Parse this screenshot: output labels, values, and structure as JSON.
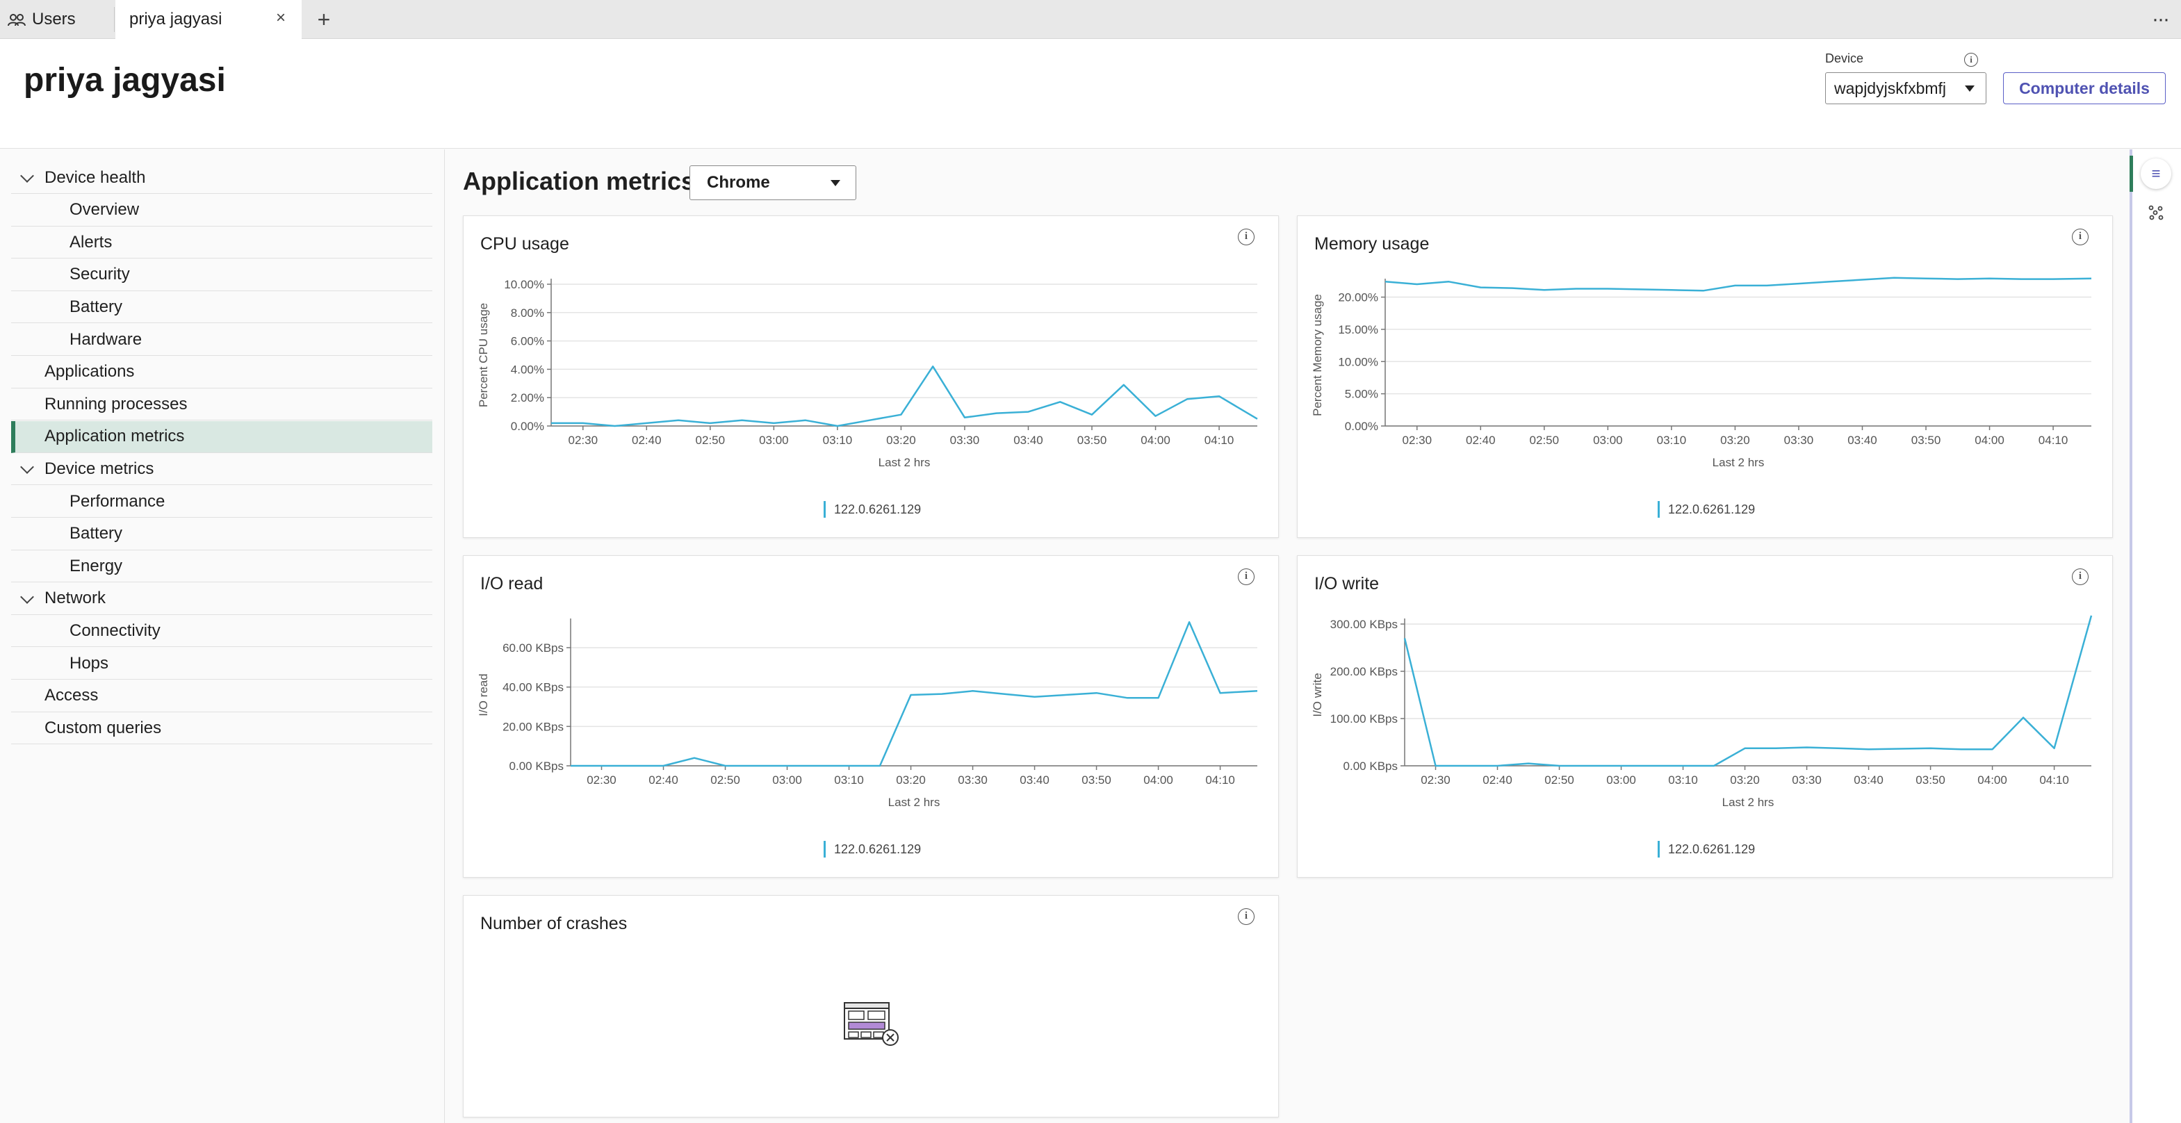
{
  "tabs": {
    "users_label": "Users",
    "active_label": "priya jagyasi",
    "close_symbol": "×",
    "add_symbol": "+",
    "more_symbol": "···"
  },
  "header": {
    "title": "priya jagyasi",
    "device_label": "Device",
    "device_value": "wapjdyjskfxbmfj",
    "details_button": "Computer details"
  },
  "sidebar": {
    "items": [
      {
        "label": "Device health",
        "level": 0,
        "expanded": true
      },
      {
        "label": "Overview",
        "level": 1
      },
      {
        "label": "Alerts",
        "level": 1
      },
      {
        "label": "Security",
        "level": 1
      },
      {
        "label": "Battery",
        "level": 1
      },
      {
        "label": "Hardware",
        "level": 1
      },
      {
        "label": "Applications",
        "level": 0
      },
      {
        "label": "Running processes",
        "level": 0
      },
      {
        "label": "Application metrics",
        "level": 0,
        "active": true
      },
      {
        "label": "Device metrics",
        "level": 0,
        "expanded": true
      },
      {
        "label": "Performance",
        "level": 1
      },
      {
        "label": "Battery",
        "level": 1
      },
      {
        "label": "Energy",
        "level": 1
      },
      {
        "label": "Network",
        "level": 0,
        "expanded": true
      },
      {
        "label": "Connectivity",
        "level": 1
      },
      {
        "label": "Hops",
        "level": 1
      },
      {
        "label": "Access",
        "level": 0
      },
      {
        "label": "Custom queries",
        "level": 0
      }
    ]
  },
  "main": {
    "title": "Application metrics",
    "app_select": "Chrome"
  },
  "colors": {
    "series": "#3ab0d6",
    "accent": "#4f52b2",
    "active_nav": "#2e7d5b"
  },
  "chart_data": [
    {
      "id": "cpu",
      "type": "line",
      "title": "CPU usage",
      "xlabel": "Last 2 hrs",
      "ylabel": "Percent CPU usage",
      "x_ticks": [
        "02:30",
        "02:40",
        "02:50",
        "03:00",
        "03:10",
        "03:20",
        "03:30",
        "03:40",
        "03:50",
        "04:00",
        "04:10"
      ],
      "y_ticks": [
        "0.00%",
        "2.00%",
        "4.00%",
        "6.00%",
        "8.00%",
        "10.00%"
      ],
      "ylim": [
        0,
        10
      ],
      "xlim": [
        "02:25",
        "04:16"
      ],
      "grid": true,
      "series": [
        {
          "name": "122.0.6261.129",
          "x": [
            "02:25",
            "02:30",
            "02:35",
            "02:40",
            "02:45",
            "02:50",
            "02:55",
            "03:00",
            "03:05",
            "03:10",
            "03:15",
            "03:20",
            "03:25",
            "03:30",
            "03:35",
            "03:40",
            "03:45",
            "03:50",
            "03:55",
            "04:00",
            "04:05",
            "04:10",
            "04:16"
          ],
          "values": [
            0.2,
            0.2,
            0.0,
            0.2,
            0.4,
            0.2,
            0.4,
            0.2,
            0.4,
            0.0,
            0.4,
            0.8,
            4.2,
            0.6,
            0.9,
            1.0,
            1.7,
            0.8,
            2.9,
            0.7,
            1.9,
            2.1,
            0.5
          ]
        }
      ]
    },
    {
      "id": "memory",
      "type": "line",
      "title": "Memory usage",
      "xlabel": "Last 2 hrs",
      "ylabel": "Percent Memory usage",
      "x_ticks": [
        "02:30",
        "02:40",
        "02:50",
        "03:00",
        "03:10",
        "03:20",
        "03:30",
        "03:40",
        "03:50",
        "04:00",
        "04:10"
      ],
      "y_ticks": [
        "0.00%",
        "5.00%",
        "10.00%",
        "15.00%",
        "20.00%"
      ],
      "ylim": [
        0,
        22
      ],
      "xlim": [
        "02:25",
        "04:16"
      ],
      "grid": true,
      "series": [
        {
          "name": "122.0.6261.129",
          "x": [
            "02:25",
            "02:30",
            "02:35",
            "02:40",
            "02:45",
            "02:50",
            "02:55",
            "03:00",
            "03:05",
            "03:10",
            "03:15",
            "03:20",
            "03:25",
            "03:30",
            "03:35",
            "03:40",
            "03:45",
            "03:50",
            "03:55",
            "04:00",
            "04:05",
            "04:10",
            "04:16"
          ],
          "values": [
            22.4,
            22.0,
            22.4,
            21.5,
            21.4,
            21.1,
            21.3,
            21.3,
            21.2,
            21.1,
            21.0,
            21.8,
            21.8,
            22.1,
            22.4,
            22.7,
            23.0,
            22.9,
            22.8,
            22.9,
            22.8,
            22.8,
            22.9
          ]
        }
      ]
    },
    {
      "id": "io_read",
      "type": "line",
      "title": "I/O read",
      "xlabel": "Last 2 hrs",
      "ylabel": "I/O read",
      "x_ticks": [
        "02:30",
        "02:40",
        "02:50",
        "03:00",
        "03:10",
        "03:20",
        "03:30",
        "03:40",
        "03:50",
        "04:00",
        "04:10"
      ],
      "y_ticks": [
        "0.00 KBps",
        "20.00 KBps",
        "40.00 KBps",
        "60.00 KBps"
      ],
      "ylim": [
        0,
        72
      ],
      "xlim": [
        "02:25",
        "04:16"
      ],
      "grid": true,
      "series": [
        {
          "name": "122.0.6261.129",
          "x": [
            "02:25",
            "02:30",
            "02:35",
            "02:40",
            "02:45",
            "02:50",
            "02:55",
            "03:00",
            "03:05",
            "03:10",
            "03:15",
            "03:20",
            "03:25",
            "03:30",
            "03:35",
            "03:40",
            "03:45",
            "03:50",
            "03:55",
            "04:00",
            "04:05",
            "04:10",
            "04:16"
          ],
          "values": [
            0,
            0,
            0,
            0,
            4,
            0,
            0,
            0,
            0,
            0,
            0,
            36,
            36.5,
            38,
            36.5,
            35,
            36,
            37,
            34.5,
            34.5,
            73,
            37,
            38
          ]
        }
      ]
    },
    {
      "id": "io_write",
      "type": "line",
      "title": "I/O write",
      "xlabel": "Last 2 hrs",
      "ylabel": "I/O write",
      "x_ticks": [
        "02:30",
        "02:40",
        "02:50",
        "03:00",
        "03:10",
        "03:20",
        "03:30",
        "03:40",
        "03:50",
        "04:00",
        "04:10"
      ],
      "y_ticks": [
        "0.00 KBps",
        "100.00 KBps",
        "200.00 KBps",
        "300.00 KBps"
      ],
      "ylim": [
        0,
        300
      ],
      "xlim": [
        "02:25",
        "04:16"
      ],
      "grid": true,
      "series": [
        {
          "name": "122.0.6261.129",
          "x": [
            "02:25",
            "02:30",
            "02:35",
            "02:40",
            "02:45",
            "02:50",
            "02:55",
            "03:00",
            "03:05",
            "03:10",
            "03:15",
            "03:20",
            "03:25",
            "03:30",
            "03:35",
            "03:40",
            "03:45",
            "03:50",
            "03:55",
            "04:00",
            "04:05",
            "04:10",
            "04:16"
          ],
          "values": [
            270,
            0,
            0,
            0,
            5,
            0,
            0,
            0,
            0,
            0,
            0,
            37,
            37,
            39,
            37,
            35,
            36,
            37,
            35,
            35,
            102,
            37,
            318
          ]
        }
      ]
    }
  ],
  "crash_card": {
    "title": "Number of crashes",
    "illustration": "empty-state-crash-icon"
  }
}
